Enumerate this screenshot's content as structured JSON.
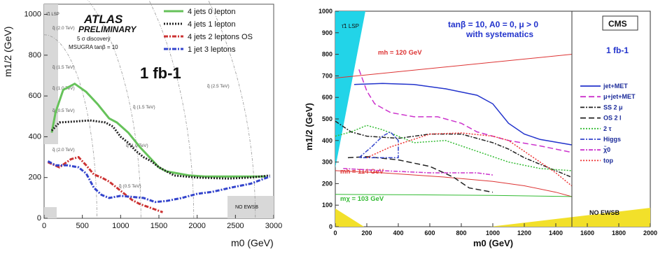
{
  "chart_data": [
    {
      "type": "line",
      "panel": "left",
      "header": [
        "ATLAS",
        "PRELIMINARY"
      ],
      "header_lines": [
        "5 σ discovery",
        "MSUGRA tanβ = 10"
      ],
      "big_label": "1 fb-1",
      "xlabel": "m0 (GeV)",
      "ylabel": "m1/2 (GeV)",
      "xlim": [
        0,
        3000
      ],
      "ylim": [
        0,
        1050
      ],
      "xticks": [
        0,
        500,
        1000,
        1500,
        2000,
        2500,
        3000
      ],
      "yticks": [
        0,
        200,
        400,
        600,
        800,
        1000
      ],
      "region_labels": {
        "lsp": "τ̃1 LSP",
        "noewsb": "NO EWSB"
      },
      "iso_mass_labels": [
        "q̃ (2.0 TeV)",
        "q̃ (1.5 TeV)",
        "q̃ (1.0 TeV)",
        "q̃ (0.5 TeV)",
        "q̃ (2.0 TeV)",
        "q̃ (1.5 TeV)",
        "q̃ (1.0 TeV)",
        "q̃ (0.5 TeV)",
        "q̃ (2.5 TeV)"
      ],
      "series": [
        {
          "name": "4 jets 0 lepton",
          "color": "#66c25a",
          "style": "solid",
          "points": [
            [
              100,
              420
            ],
            [
              150,
              520
            ],
            [
              250,
              630
            ],
            [
              400,
              660
            ],
            [
              550,
              620
            ],
            [
              700,
              560
            ],
            [
              850,
              490
            ],
            [
              950,
              470
            ],
            [
              1100,
              420
            ],
            [
              1250,
              350
            ],
            [
              1400,
              290
            ],
            [
              1500,
              250
            ],
            [
              1600,
              230
            ],
            [
              1750,
              220
            ],
            [
              1900,
              210
            ],
            [
              2100,
              205
            ],
            [
              2400,
              205
            ],
            [
              2900,
              205
            ]
          ]
        },
        {
          "name": "4 jets 1 lepton",
          "color": "#222222",
          "style": "dot",
          "points": [
            [
              100,
              430
            ],
            [
              200,
              470
            ],
            [
              400,
              475
            ],
            [
              600,
              480
            ],
            [
              800,
              470
            ],
            [
              900,
              450
            ],
            [
              1000,
              400
            ],
            [
              1100,
              370
            ],
            [
              1200,
              330
            ],
            [
              1300,
              300
            ],
            [
              1400,
              280
            ],
            [
              1500,
              250
            ],
            [
              1700,
              210
            ],
            [
              2000,
              200
            ],
            [
              2400,
              195
            ],
            [
              2700,
              200
            ],
            [
              2950,
              210
            ]
          ]
        },
        {
          "name": "4 jets 2 leptons OS",
          "color": "#cc3333",
          "style": "dashdot",
          "points": [
            [
              50,
              275
            ],
            [
              200,
              250
            ],
            [
              350,
              290
            ],
            [
              450,
              300
            ],
            [
              550,
              260
            ],
            [
              650,
              215
            ],
            [
              750,
              200
            ],
            [
              850,
              180
            ],
            [
              950,
              150
            ],
            [
              1050,
              120
            ],
            [
              1150,
              90
            ],
            [
              1250,
              70
            ],
            [
              1400,
              50
            ],
            [
              1550,
              30
            ]
          ]
        },
        {
          "name": "1 jet 3 leptons",
          "color": "#3344cc",
          "style": "dashdot",
          "points": [
            [
              50,
              280
            ],
            [
              150,
              260
            ],
            [
              300,
              260
            ],
            [
              450,
              250
            ],
            [
              550,
              220
            ],
            [
              650,
              150
            ],
            [
              750,
              115
            ],
            [
              850,
              100
            ],
            [
              1000,
              110
            ],
            [
              1150,
              105
            ],
            [
              1300,
              100
            ],
            [
              1450,
              80
            ],
            [
              1600,
              85
            ],
            [
              1800,
              100
            ],
            [
              2000,
              120
            ],
            [
              2200,
              130
            ],
            [
              2500,
              155
            ],
            [
              2700,
              170
            ],
            [
              2950,
              205
            ]
          ]
        }
      ]
    },
    {
      "type": "line",
      "panel": "right",
      "header_lines": [
        "tanβ = 10, A0 = 0, μ > 0",
        "with systematics"
      ],
      "logo": "CMS",
      "lumi": "1 fb-1",
      "xlabel": "m0 (GeV)",
      "ylabel": "m1/2 (GeV)",
      "xlim": [
        0,
        2000
      ],
      "ylim": [
        0,
        1000
      ],
      "xticks": [
        0,
        200,
        400,
        600,
        800,
        1000,
        1200,
        1400,
        1600,
        1800,
        2000
      ],
      "yticks": [
        0,
        100,
        200,
        300,
        400,
        500,
        600,
        700,
        800,
        900,
        1000
      ],
      "region_labels": {
        "lsp": "τ̃1 LSP",
        "noewsb": "NO EWSB"
      },
      "iso_lines": [
        {
          "label": "mh = 120 GeV",
          "color": "#dd3333",
          "points": [
            [
              0,
              690
            ],
            [
              1500,
              800
            ]
          ]
        },
        {
          "label": "mh = 114 GeV",
          "color": "#dd3333",
          "points": [
            [
              0,
              260
            ],
            [
              300,
              250
            ],
            [
              700,
              230
            ],
            [
              1000,
              210
            ],
            [
              1200,
              190
            ],
            [
              1400,
              160
            ],
            [
              1500,
              140
            ]
          ]
        },
        {
          "label": "mχ = 103 GeV",
          "color": "#33bb33",
          "points": [
            [
              0,
              150
            ],
            [
              500,
              148
            ],
            [
              1000,
              145
            ],
            [
              1500,
              140
            ]
          ]
        }
      ],
      "series": [
        {
          "name": "jet+MET",
          "color": "#2233cc",
          "style": "solid",
          "points": [
            [
              120,
              660
            ],
            [
              300,
              665
            ],
            [
              500,
              660
            ],
            [
              700,
              640
            ],
            [
              900,
              610
            ],
            [
              1000,
              570
            ],
            [
              1100,
              480
            ],
            [
              1200,
              430
            ],
            [
              1300,
              405
            ],
            [
              1500,
              380
            ]
          ]
        },
        {
          "name": "μ+jet+MET",
          "color": "#cc33cc",
          "style": "dash",
          "points": [
            [
              150,
              730
            ],
            [
              200,
              630
            ],
            [
              250,
              570
            ],
            [
              350,
              530
            ],
            [
              500,
              510
            ],
            [
              650,
              510
            ],
            [
              800,
              480
            ],
            [
              900,
              440
            ],
            [
              1000,
              420
            ],
            [
              1100,
              400
            ],
            [
              1300,
              375
            ],
            [
              1500,
              345
            ]
          ]
        },
        {
          "name": "SS 2 μ",
          "color": "#222222",
          "style": "dashdot",
          "points": [
            [
              0,
              490
            ],
            [
              100,
              440
            ],
            [
              200,
              420
            ],
            [
              400,
              410
            ],
            [
              600,
              430
            ],
            [
              800,
              430
            ],
            [
              1000,
              390
            ],
            [
              1100,
              360
            ],
            [
              1200,
              320
            ],
            [
              1300,
              290
            ],
            [
              1500,
              230
            ]
          ]
        },
        {
          "name": "OS 2 l",
          "color": "#222222",
          "style": "dash",
          "points": [
            [
              80,
              320
            ],
            [
              200,
              325
            ],
            [
              400,
              310
            ],
            [
              600,
              280
            ],
            [
              750,
              230
            ],
            [
              850,
              180
            ],
            [
              1000,
              160
            ]
          ]
        },
        {
          "name": "2 τ",
          "color": "#33bb33",
          "style": "dot",
          "points": [
            [
              0,
              420
            ],
            [
              100,
              440
            ],
            [
              200,
              470
            ],
            [
              300,
              450
            ],
            [
              500,
              390
            ],
            [
              700,
              400
            ],
            [
              900,
              350
            ],
            [
              1100,
              300
            ],
            [
              1300,
              270
            ],
            [
              1500,
              260
            ]
          ]
        },
        {
          "name": "Higgs",
          "color": "#3344cc",
          "style": "dashdot",
          "points": [
            [
              150,
              320
            ],
            [
              230,
              370
            ],
            [
              300,
              420
            ],
            [
              350,
              440
            ],
            [
              400,
              400
            ],
            [
              400,
              320
            ],
            [
              150,
              320
            ]
          ]
        },
        {
          "name": "χ̃0",
          "color": "#cc33cc",
          "style": "dashdot",
          "points": [
            [
              50,
              270
            ],
            [
              300,
              260
            ],
            [
              600,
              250
            ],
            [
              900,
              250
            ],
            [
              1000,
              240
            ]
          ]
        },
        {
          "name": "top",
          "color": "#ee3333",
          "style": "dot",
          "points": [
            [
              200,
              320
            ],
            [
              350,
              370
            ],
            [
              600,
              430
            ],
            [
              800,
              435
            ],
            [
              1000,
              420
            ],
            [
              1100,
              400
            ],
            [
              1200,
              350
            ],
            [
              1300,
              300
            ],
            [
              1400,
              250
            ],
            [
              1500,
              190
            ]
          ]
        }
      ]
    }
  ]
}
